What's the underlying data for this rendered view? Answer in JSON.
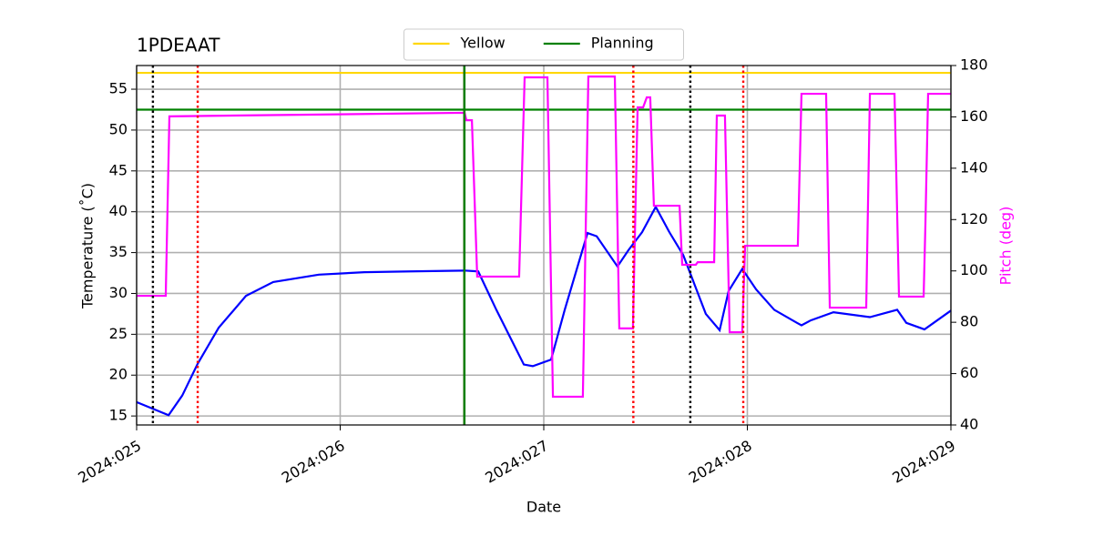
{
  "chart_data": {
    "type": "line",
    "title": "1PDEAAT",
    "xlabel": "Date",
    "ylabel": "Temperature (˚C)",
    "y2label": "Pitch (deg)",
    "y2color": "#ff00ff",
    "xlim": [
      25,
      29
    ],
    "xticks": [
      {
        "value": 25,
        "label": "2024:025"
      },
      {
        "value": 26,
        "label": "2024:026"
      },
      {
        "value": 27,
        "label": "2024:027"
      },
      {
        "value": 28,
        "label": "2024:028"
      },
      {
        "value": 29,
        "label": "2024:029"
      }
    ],
    "ylim": [
      13.9,
      57.9
    ],
    "yticks": [
      15,
      20,
      25,
      30,
      35,
      40,
      45,
      50,
      55
    ],
    "y2lim": [
      40,
      180
    ],
    "y2ticks": [
      40,
      60,
      80,
      100,
      120,
      140,
      160,
      180
    ],
    "grid": true,
    "legend": "upper center",
    "hlines": [
      {
        "name": "Yellow",
        "color": "#ffd700",
        "value": 57
      },
      {
        "name": "Planning",
        "color": "#008000",
        "value": 52.5
      }
    ],
    "vlines": [
      {
        "value": 25.08,
        "color": "#000000",
        "style": "dotted"
      },
      {
        "value": 25.3,
        "color": "#ff0000",
        "style": "dotted"
      },
      {
        "value": 26.61,
        "color": "#8b0000",
        "style": "solid"
      },
      {
        "value": 26.61,
        "color": "#008000",
        "style": "solid"
      },
      {
        "value": 27.44,
        "color": "#ff0000",
        "style": "dotted"
      },
      {
        "value": 27.72,
        "color": "#000000",
        "style": "dotted"
      },
      {
        "value": 27.98,
        "color": "#ff0000",
        "style": "dotted"
      }
    ],
    "series": [
      {
        "color": "#0000ff",
        "x": [
          25.0,
          25.157,
          25.224,
          25.3,
          25.403,
          25.537,
          25.671,
          25.895,
          26.119,
          26.342,
          26.611,
          26.678,
          26.767,
          26.902,
          26.946,
          27.036,
          27.103,
          27.215,
          27.26,
          27.362,
          27.416,
          27.483,
          27.55,
          27.617,
          27.685,
          27.796,
          27.864,
          27.908,
          27.975,
          28.043,
          28.132,
          28.244,
          28.266,
          28.311,
          28.423,
          28.602,
          28.736,
          28.781,
          28.87,
          29.0
        ],
        "values": [
          16.7,
          15.1,
          17.5,
          21.4,
          25.8,
          29.7,
          31.4,
          32.3,
          32.6,
          32.7,
          32.8,
          32.7,
          28.0,
          21.3,
          21.1,
          21.9,
          28.0,
          37.4,
          37.0,
          33.3,
          35.3,
          37.5,
          40.6,
          37.5,
          34.7,
          27.5,
          25.5,
          30.3,
          33.0,
          30.5,
          28.0,
          26.4,
          26.1,
          26.7,
          27.7,
          27.1,
          28.0,
          26.4,
          25.6,
          27.9
        ]
      },
      {
        "color": "#ff00ff",
        "axis": "y2",
        "x": [
          25.0,
          25.143,
          25.161,
          26.611,
          26.62,
          26.647,
          26.673,
          26.879,
          26.906,
          27.018,
          27.045,
          27.192,
          27.219,
          27.349,
          27.371,
          27.438,
          27.461,
          27.488,
          27.506,
          27.523,
          27.541,
          27.667,
          27.68,
          27.747,
          27.756,
          27.837,
          27.85,
          27.89,
          27.913,
          27.975,
          27.989,
          28.248,
          28.266,
          28.387,
          28.405,
          28.584,
          28.602,
          28.723,
          28.745,
          28.866,
          28.875,
          28.888,
          29.0
        ],
        "values": [
          90.3,
          90.3,
          160.2,
          161.6,
          158.7,
          158.7,
          97.8,
          97.8,
          175.4,
          175.4,
          51,
          51,
          175.7,
          175.7,
          77.6,
          77.6,
          163.7,
          163.7,
          167.6,
          167.6,
          125.4,
          125.4,
          102.4,
          102.4,
          103.4,
          103.4,
          160.5,
          160.5,
          76.1,
          76.1,
          109.8,
          109.8,
          169,
          169,
          85.7,
          85.7,
          169,
          169,
          90,
          90,
          119,
          169,
          169
        ]
      }
    ]
  }
}
